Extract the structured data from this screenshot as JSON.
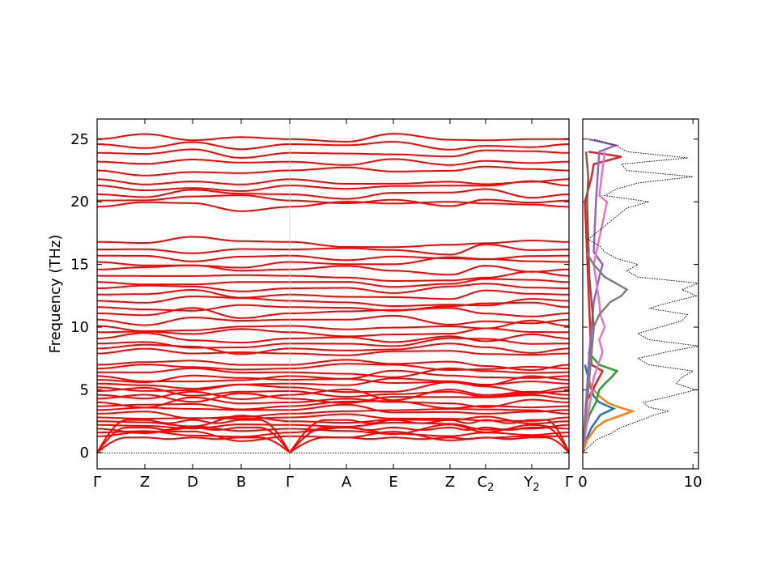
{
  "chart_data": [
    {
      "type": "line",
      "panel": "band-structure",
      "ylabel": "Frequency (THz)",
      "ylim": [
        -1.3,
        26.6
      ],
      "yticks": [
        0,
        5,
        10,
        15,
        20,
        25
      ],
      "xticks": [
        "Γ",
        "Z",
        "D",
        "B",
        "Γ",
        "A",
        "E",
        "Z",
        "C2",
        "Y2",
        "Γ"
      ],
      "xtick_labels": [
        {
          "base": "Γ",
          "sub": ""
        },
        {
          "base": "Z",
          "sub": ""
        },
        {
          "base": "D",
          "sub": ""
        },
        {
          "base": "B",
          "sub": ""
        },
        {
          "base": "Γ",
          "sub": ""
        },
        {
          "base": "A",
          "sub": ""
        },
        {
          "base": "E",
          "sub": ""
        },
        {
          "base": "Z",
          "sub": ""
        },
        {
          "base": "C",
          "sub": "2"
        },
        {
          "base": "Y",
          "sub": "2"
        },
        {
          "base": "Γ",
          "sub": ""
        }
      ],
      "band_color": "#ff0000",
      "zero_line_color": "#0000ff",
      "optical_bands_at_gamma": [
        1.3,
        1.6,
        1.9,
        2.2,
        2.5,
        2.8,
        3.1,
        3.4,
        3.7,
        4.0,
        4.3,
        4.6,
        4.9,
        5.2,
        5.5,
        5.8,
        6.1,
        6.4,
        6.7,
        7.0,
        7.9,
        8.3,
        8.7,
        9.1,
        9.6,
        10.1,
        10.6,
        11.1,
        11.6,
        12.1,
        12.6,
        13.1,
        13.6,
        14.1,
        14.6,
        15.2,
        15.7,
        16.2,
        16.8,
        19.6,
        20.1,
        20.6,
        21.3,
        21.8,
        22.5,
        23.2,
        23.9,
        24.6,
        25.0
      ],
      "acoustic_max_at_zone_boundary": [
        1.2,
        2.0,
        2.6
      ]
    },
    {
      "type": "line",
      "panel": "density-of-states",
      "xlim": [
        0,
        10.5
      ],
      "xticks": [
        0,
        10
      ],
      "ylim": [
        -1.3,
        26.6
      ],
      "total_color": "#000000",
      "total_style": "dotted",
      "total_dos": {
        "frequency": [
          0,
          1,
          1.5,
          2,
          2.5,
          3,
          3.3,
          3.6,
          4,
          4.5,
          5,
          5.5,
          6,
          6.5,
          7,
          7.5,
          8,
          8.5,
          9,
          9.5,
          10,
          10.5,
          11,
          11.5,
          12,
          12.5,
          13,
          13.5,
          14,
          14.5,
          15,
          15.5,
          16,
          16.5,
          17,
          19.5,
          20,
          20.5,
          21,
          21.5,
          22,
          22.5,
          23,
          23.5,
          24,
          24.5,
          25
        ],
        "dos": [
          0,
          1.2,
          2.5,
          3.5,
          5.0,
          6.5,
          7.8,
          6.0,
          5.5,
          8.0,
          10.2,
          8.5,
          9.0,
          10.0,
          6.0,
          5.0,
          7.5,
          10.5,
          6.0,
          5.0,
          7.0,
          9.0,
          9.5,
          6.0,
          8.0,
          10.3,
          9.0,
          10.5,
          5.0,
          4.0,
          5.0,
          3.0,
          2.0,
          1.5,
          0.5,
          4.0,
          6.0,
          2.0,
          3.0,
          5.0,
          10.0,
          4.0,
          3.5,
          9.5,
          4.0,
          3.0,
          1.0
        ]
      },
      "projected": [
        {
          "color": "#1f77b4",
          "frequency": [
            0,
            1,
            2,
            2.5,
            3,
            3.5,
            4,
            4.5,
            5,
            6,
            7
          ],
          "dos": [
            0,
            0.3,
            0.8,
            1.2,
            1.6,
            2.8,
            1.5,
            1.0,
            0.8,
            0.5,
            0.2
          ]
        },
        {
          "color": "#ff7f0e",
          "frequency": [
            0,
            1,
            2,
            2.5,
            3,
            3.3,
            3.7,
            4,
            4.5,
            5,
            6
          ],
          "dos": [
            0,
            0.4,
            1.2,
            2.0,
            3.6,
            4.5,
            3.0,
            2.2,
            1.5,
            1.0,
            0.4
          ]
        },
        {
          "color": "#2ca02c",
          "frequency": [
            0,
            2,
            3,
            4,
            5,
            5.5,
            6,
            6.5,
            7,
            8
          ],
          "dos": [
            0,
            0.3,
            0.6,
            1.2,
            1.5,
            2.0,
            2.6,
            3.1,
            1.5,
            0.5
          ]
        },
        {
          "color": "#d62728",
          "frequency": [
            0,
            4,
            6,
            6.5,
            7,
            20,
            22,
            23,
            23.6,
            24
          ],
          "dos": [
            0,
            0.3,
            1.5,
            1.8,
            0.8,
            0.2,
            0.8,
            1.0,
            3.5,
            0.5
          ]
        },
        {
          "color": "#9467bd",
          "frequency": [
            0,
            8,
            10,
            12,
            14,
            15,
            16,
            20,
            24,
            24.5,
            25
          ],
          "dos": [
            0,
            0.6,
            0.8,
            1.0,
            1.5,
            1.8,
            1.0,
            1.2,
            1.5,
            3.0,
            0.5
          ]
        },
        {
          "color": "#8c564b",
          "frequency": [
            0,
            5,
            8,
            10,
            12,
            14,
            20,
            22,
            24
          ],
          "dos": [
            0,
            0.5,
            0.8,
            1.0,
            0.8,
            0.6,
            0.4,
            0.5,
            0.3
          ]
        },
        {
          "color": "#e377c2",
          "frequency": [
            0,
            6,
            8,
            9,
            10,
            11,
            12,
            15,
            20,
            20.5,
            24
          ],
          "dos": [
            0,
            1.0,
            1.8,
            1.5,
            2.0,
            1.6,
            1.5,
            1.0,
            2.2,
            1.5,
            2.0
          ]
        },
        {
          "color": "#7f7f7f",
          "frequency": [
            0,
            10,
            11,
            12,
            12.5,
            13,
            13.5,
            14,
            15,
            16
          ],
          "dos": [
            0,
            1.0,
            1.5,
            2.5,
            3.5,
            4.0,
            3.0,
            2.0,
            1.0,
            0.3
          ]
        }
      ]
    }
  ]
}
